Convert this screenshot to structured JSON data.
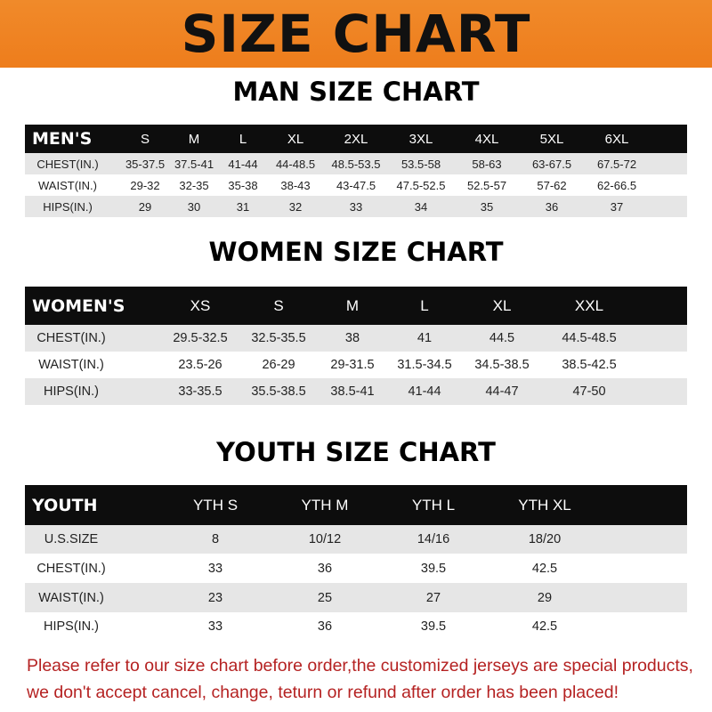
{
  "banner_title": "SIZE CHART",
  "men": {
    "title": "MAN SIZE CHART",
    "header": [
      "MEN'S",
      "S",
      "M",
      "L",
      "XL",
      "2XL",
      "3XL",
      "4XL",
      "5XL",
      "6XL"
    ],
    "rows": [
      [
        "CHEST(IN.)",
        "35-37.5",
        "37.5-41",
        "41-44",
        "44-48.5",
        "48.5-53.5",
        "53.5-58",
        "58-63",
        "63-67.5",
        "67.5-72"
      ],
      [
        "WAIST(IN.)",
        "29-32",
        "32-35",
        "35-38",
        "38-43",
        "43-47.5",
        "47.5-52.5",
        "52.5-57",
        "57-62",
        "62-66.5"
      ],
      [
        "HIPS(IN.)",
        "29",
        "30",
        "31",
        "32",
        "33",
        "34",
        "35",
        "36",
        "37"
      ]
    ]
  },
  "women": {
    "title": "WOMEN SIZE CHART",
    "header": [
      "WOMEN'S",
      "XS",
      "S",
      "M",
      "L",
      "XL",
      "XXL"
    ],
    "rows": [
      [
        "CHEST(IN.)",
        "29.5-32.5",
        "32.5-35.5",
        "38",
        "41",
        "44.5",
        "44.5-48.5"
      ],
      [
        "WAIST(IN.)",
        "23.5-26",
        "26-29",
        "29-31.5",
        "31.5-34.5",
        "34.5-38.5",
        "38.5-42.5"
      ],
      [
        "HIPS(IN.)",
        "33-35.5",
        "35.5-38.5",
        "38.5-41",
        "41-44",
        "44-47",
        "47-50"
      ]
    ]
  },
  "youth": {
    "title": "YOUTH SIZE CHART",
    "header": [
      "YOUTH",
      "YTH S",
      "YTH M",
      "YTH L",
      "YTH XL"
    ],
    "rows": [
      [
        "U.S.SIZE",
        "8",
        "10/12",
        "14/16",
        "18/20"
      ],
      [
        "CHEST(IN.)",
        "33",
        "36",
        "39.5",
        "42.5"
      ],
      [
        "WAIST(IN.)",
        "23",
        "25",
        "27",
        "29"
      ],
      [
        "HIPS(IN.)",
        "33",
        "36",
        "39.5",
        "42.5"
      ]
    ]
  },
  "footer": {
    "line1": "Please refer to our size chart before order,the customized jerseys are special products,",
    "line2": "we don't accept cancel, change, teturn or refund after order has been placed!"
  },
  "colors": {
    "banner": "#ee7d1c",
    "header_row": "#0d0d0d",
    "stripe": "#e6e6e6",
    "footer_text": "#b52222"
  }
}
